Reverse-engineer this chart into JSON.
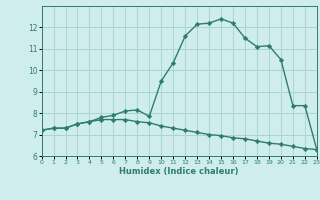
{
  "line1_x": [
    0,
    1,
    2,
    3,
    4,
    5,
    6,
    7,
    8,
    9,
    10,
    11,
    12,
    13,
    14,
    15,
    16,
    17,
    18,
    19,
    20,
    21,
    22,
    23
  ],
  "line1_y": [
    7.2,
    7.3,
    7.3,
    7.5,
    7.6,
    7.8,
    7.9,
    8.1,
    8.15,
    7.85,
    9.5,
    10.35,
    11.6,
    12.15,
    12.2,
    12.4,
    12.2,
    11.5,
    11.1,
    11.15,
    10.5,
    8.35,
    8.35,
    6.3
  ],
  "line2_x": [
    0,
    1,
    2,
    3,
    4,
    5,
    6,
    7,
    8,
    9,
    10,
    11,
    12,
    13,
    14,
    15,
    16,
    17,
    18,
    19,
    20,
    21,
    22,
    23
  ],
  "line2_y": [
    7.2,
    7.3,
    7.3,
    7.5,
    7.6,
    7.7,
    7.7,
    7.7,
    7.6,
    7.55,
    7.4,
    7.3,
    7.2,
    7.1,
    7.0,
    6.95,
    6.85,
    6.8,
    6.7,
    6.6,
    6.55,
    6.45,
    6.35,
    6.3
  ],
  "line_color": "#2e7d6e",
  "bg_color": "#d0eded",
  "grid_color": "#aad4d4",
  "xlabel": "Humidex (Indice chaleur)",
  "ylim": [
    6,
    13
  ],
  "xlim": [
    0,
    23
  ],
  "yticks": [
    6,
    7,
    8,
    9,
    10,
    11,
    12
  ],
  "xticks": [
    0,
    1,
    2,
    3,
    4,
    5,
    6,
    7,
    8,
    9,
    10,
    11,
    12,
    13,
    14,
    15,
    16,
    17,
    18,
    19,
    20,
    21,
    22,
    23
  ],
  "marker": "D",
  "marker_size": 2.2,
  "linewidth": 1.0,
  "fig_width": 3.2,
  "fig_height": 2.0,
  "dpi": 100
}
